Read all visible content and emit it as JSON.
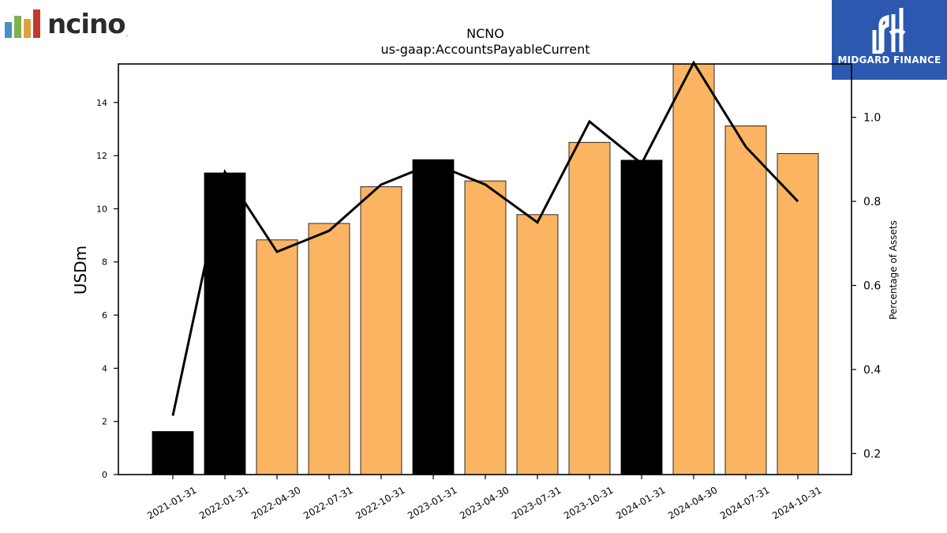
{
  "brand": {
    "left_logo_text": "ncino",
    "left_logo_mark": ".",
    "left_logo_colors": [
      "#4a90c2",
      "#7fb24a",
      "#e0a040",
      "#c0392b"
    ],
    "right_logo_text": "MIDGARD FINANCE",
    "right_logo_bg": "#2c58b0"
  },
  "chart_data": {
    "type": "bar",
    "title": "NCNO",
    "subtitle": "us-gaap:AccountsPayableCurrent",
    "ylabel": "USDm",
    "y2label": "Percentage of Assets",
    "ylim": [
      0,
      15.45
    ],
    "y2lim": [
      0.15,
      1.127
    ],
    "yticks": [
      0,
      2,
      4,
      6,
      8,
      10,
      12,
      14
    ],
    "y2ticks": [
      "0.2",
      "0.4",
      "0.6",
      "0.8",
      "1.0"
    ],
    "categories": [
      "2021-01-31",
      "2022-01-31",
      "2022-04-30",
      "2022-07-31",
      "2022-10-31",
      "2023-01-31",
      "2023-04-30",
      "2023-07-31",
      "2023-10-31",
      "2024-01-31",
      "2024-04-30",
      "2024-07-31",
      "2024-10-31"
    ],
    "values": [
      1.62,
      11.35,
      8.83,
      9.45,
      10.83,
      11.85,
      11.05,
      9.78,
      12.5,
      11.83,
      15.6,
      13.12,
      12.08
    ],
    "fiscal_year_end": [
      true,
      true,
      false,
      false,
      false,
      true,
      false,
      false,
      false,
      true,
      false,
      false,
      false
    ],
    "percentage_of_assets": [
      0.29,
      0.87,
      0.68,
      0.73,
      0.84,
      0.89,
      0.84,
      0.75,
      0.99,
      0.89,
      1.13,
      0.93,
      0.8
    ],
    "colors": {
      "annual": "#000000",
      "quarterly": "#fbb462",
      "line": "#000000"
    }
  }
}
